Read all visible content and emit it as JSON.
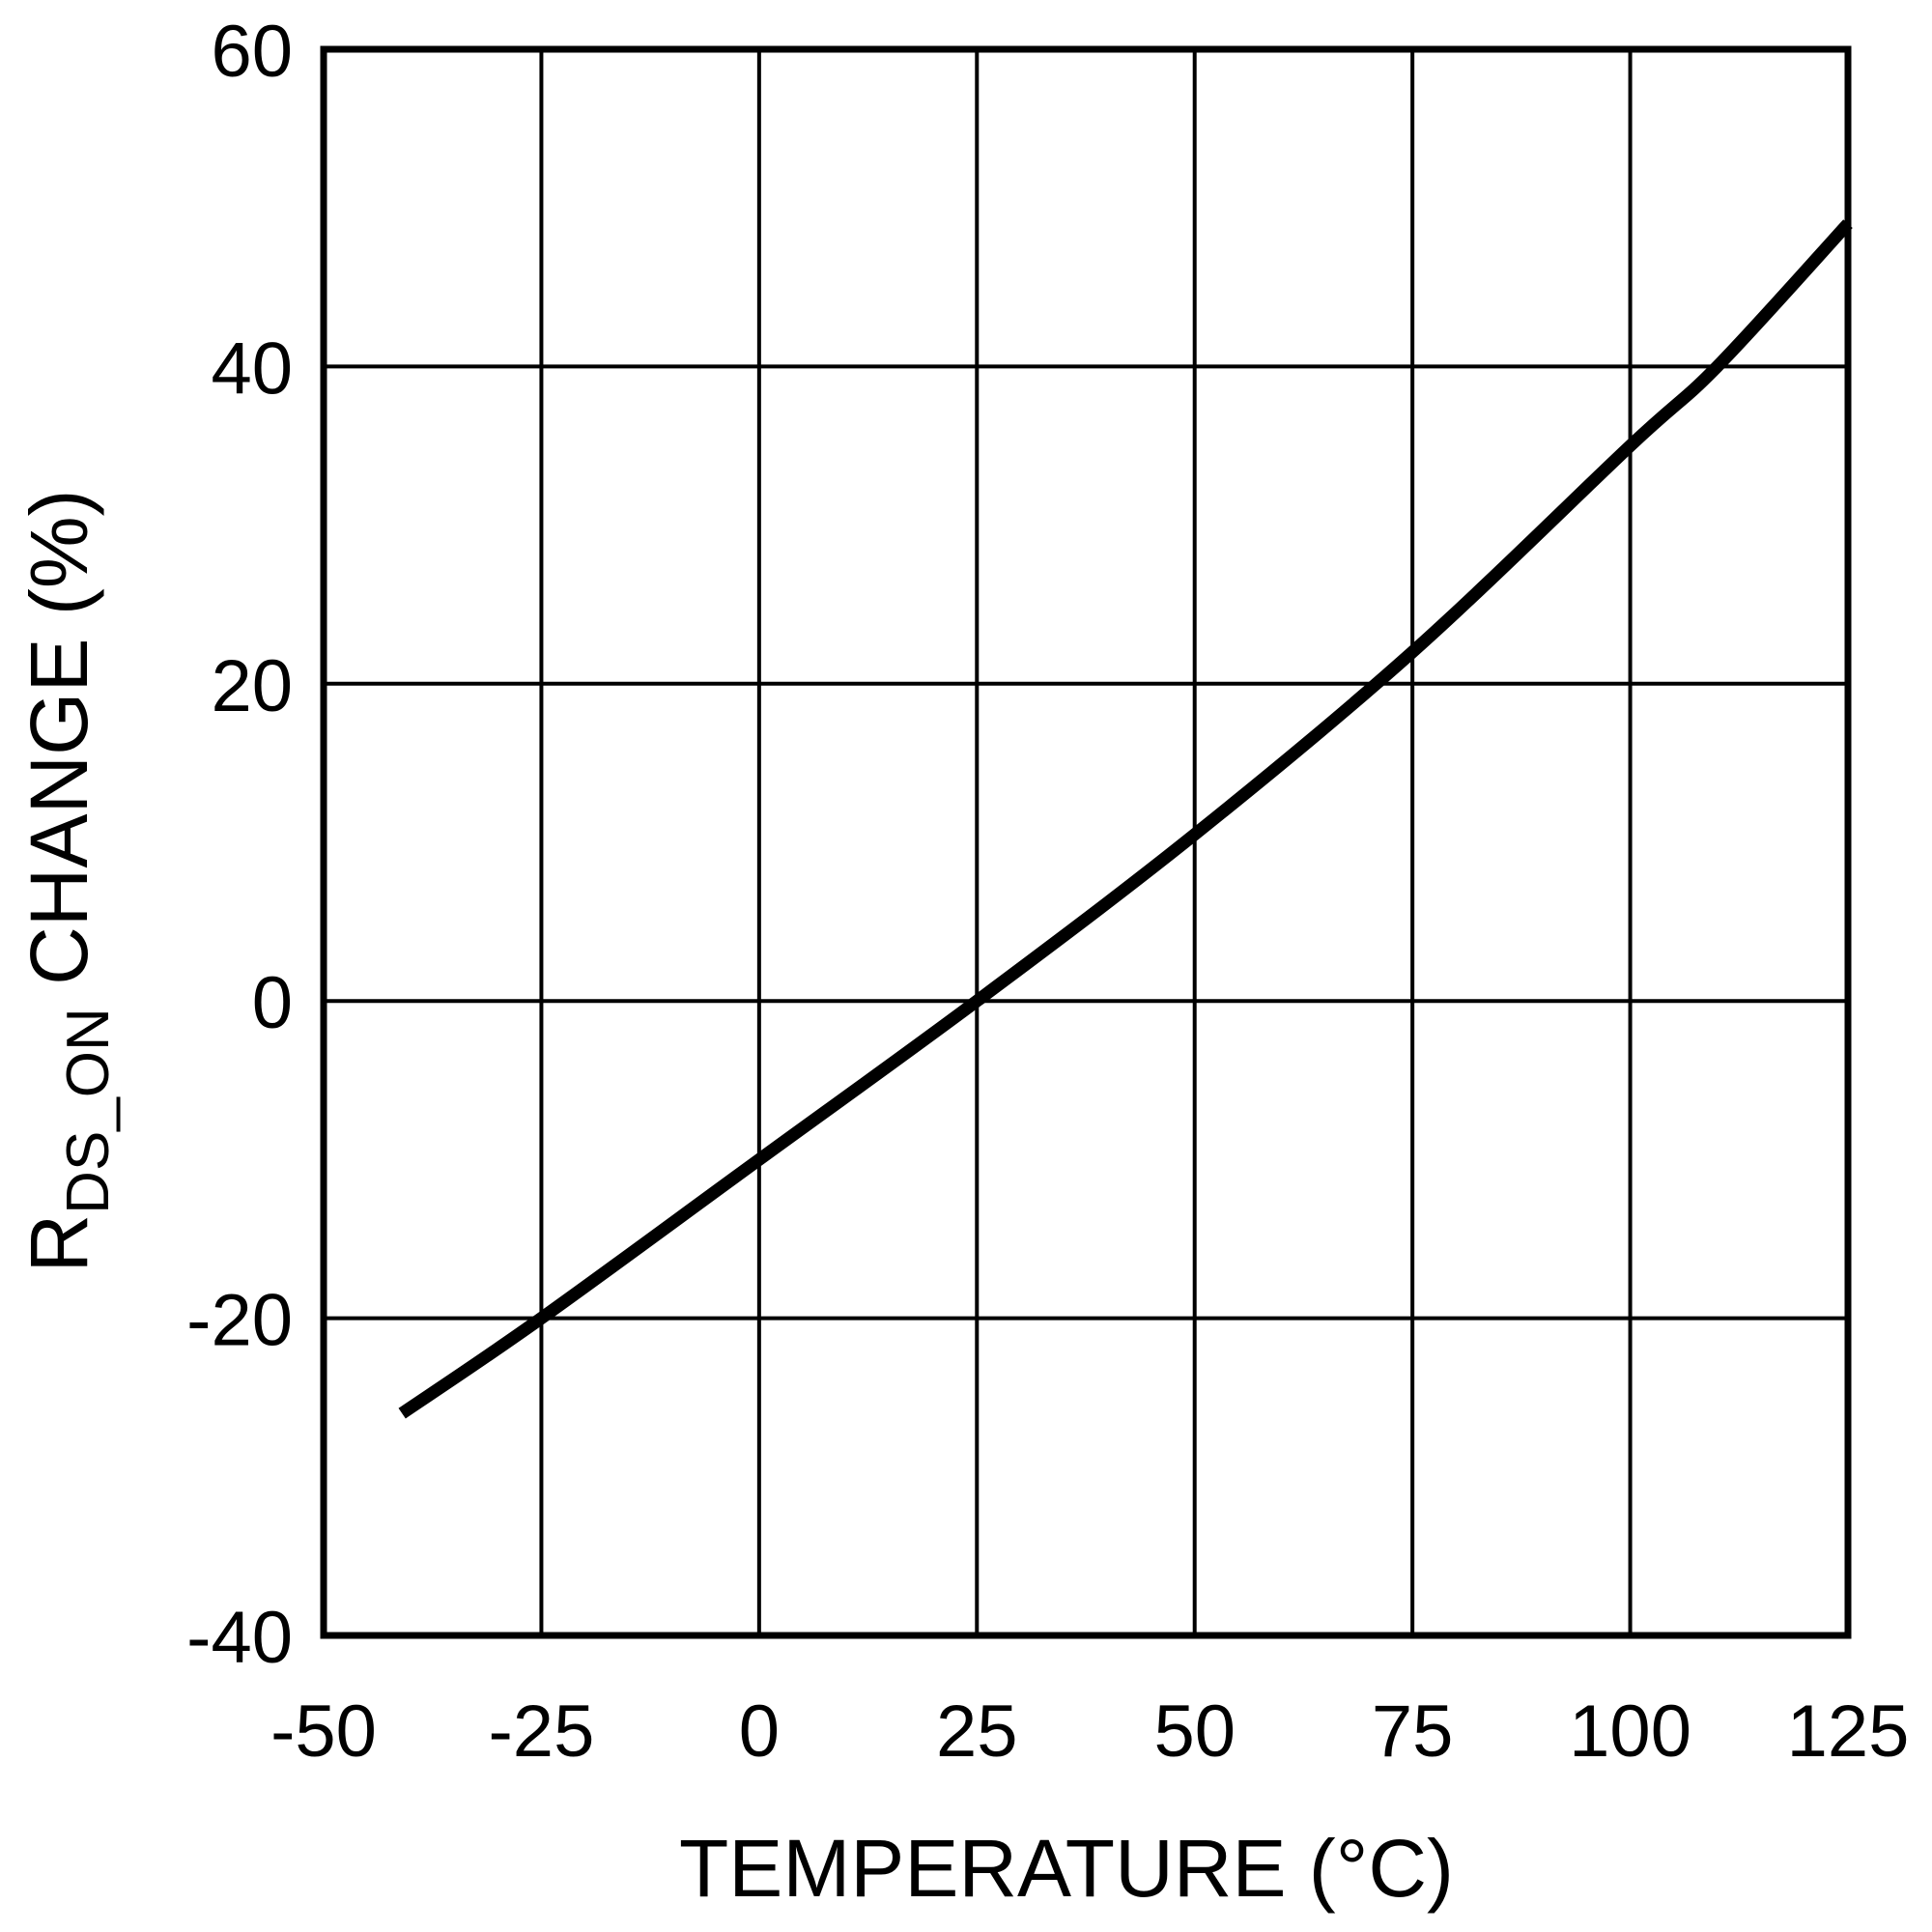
{
  "chart_data": {
    "type": "line",
    "title": "",
    "xlabel": "TEMPERATURE (°C)",
    "ylabel": "RDS_ON CHANGE (%)",
    "ylabel_parts": {
      "main": "R",
      "subscript": "DS_ON",
      "rest": " CHANGE (%)"
    },
    "xlim": [
      -50,
      125
    ],
    "ylim": [
      -40,
      60
    ],
    "x_ticks": [
      -50,
      -25,
      0,
      25,
      50,
      75,
      100,
      125
    ],
    "y_ticks": [
      -40,
      -20,
      0,
      20,
      40,
      60
    ],
    "x_tick_labels": [
      "-50",
      "-25",
      "0",
      "25",
      "50",
      "75",
      "100",
      "125"
    ],
    "y_tick_labels": [
      "-40",
      "-20",
      "0",
      "20",
      "40",
      "60"
    ],
    "grid": true,
    "legend": null,
    "series": [
      {
        "name": "RDS_ON change",
        "color": "#000000",
        "x": [
          -41,
          -25,
          0,
          25,
          50,
          75,
          100,
          110,
          125
        ],
        "y": [
          -26,
          -20,
          -10,
          0,
          10.5,
          22,
          35,
          40,
          49
        ]
      }
    ]
  },
  "colors": {
    "background": "#ffffff",
    "grid": "#000000",
    "frame": "#000000",
    "curve": "#000000"
  }
}
